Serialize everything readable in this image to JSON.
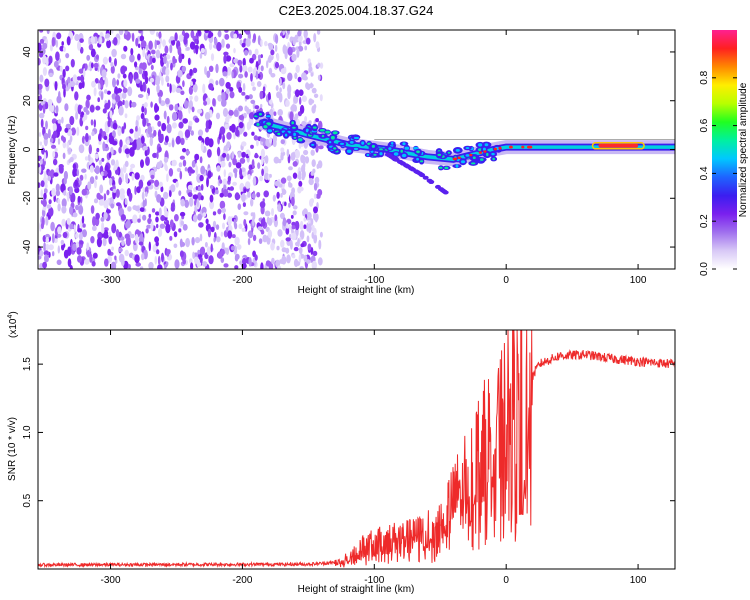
{
  "figure": {
    "title": "C2E3.2025.004.18.37.G24"
  },
  "chart_data": [
    {
      "type": "heatmap",
      "title": "C2E3.2025.004.18.37.G24",
      "xlabel": "Height of straight line (km)",
      "ylabel": "Frequency (Hz)",
      "xlim": [
        -355,
        128
      ],
      "ylim": [
        -49,
        49
      ],
      "x_ticks": [
        -300,
        -200,
        -100,
        0,
        100
      ],
      "y_ticks": [
        -40,
        -20,
        0,
        20,
        40
      ],
      "colorbar": {
        "label": "Normalized spectral amplitude",
        "range": [
          0,
          1
        ],
        "ticks": [
          "0.0",
          "0.2",
          "0.4",
          "0.6",
          "0.8"
        ],
        "colors": [
          "#ffffff",
          "#d8c8f6",
          "#a070ee",
          "#7a20ee",
          "#3b1ef0",
          "#1e64ff",
          "#00c8ff",
          "#00f0a0",
          "#20ff20",
          "#b8ff00",
          "#ffee00",
          "#ff8800",
          "#ff2020",
          "#ff2090"
        ]
      },
      "segments": {
        "noise_region": [
          -355,
          -140
        ],
        "signal_track": [
          {
            "x": -185,
            "y": 11
          },
          {
            "x": -150,
            "y": 6
          },
          {
            "x": -120,
            "y": 2
          },
          {
            "x": -90,
            "y": 0
          },
          {
            "x": -60,
            "y": -3
          },
          {
            "x": -40,
            "y": -4
          },
          {
            "x": -10,
            "y": 0
          },
          {
            "x": 0,
            "y": 1
          },
          {
            "x": 50,
            "y": 1
          },
          {
            "x": 128,
            "y": 1
          }
        ],
        "branch_track": [
          {
            "x": -90,
            "y": -2
          },
          {
            "x": -65,
            "y": -10
          },
          {
            "x": -45,
            "y": -18
          }
        ]
      }
    },
    {
      "type": "line",
      "xlabel": "Height of straight line (km)",
      "ylabel": "SNR (10 * v/v)",
      "y_multiplier": "(x10",
      "y_multiplier_exp": "4",
      "xlim": [
        -355,
        128
      ],
      "ylim": [
        0,
        17500
      ],
      "x_ticks": [
        -300,
        -200,
        -100,
        0,
        100
      ],
      "y_ticks": [
        5000,
        10000,
        15000
      ],
      "y_tick_labels": [
        "0.5",
        "1.0",
        "1.5"
      ],
      "line_color": "#ee2a2a",
      "envelope": [
        {
          "x": -355,
          "y": 300
        },
        {
          "x": -150,
          "y": 350
        },
        {
          "x": -125,
          "y": 500
        },
        {
          "x": -110,
          "y": 1600
        },
        {
          "x": -90,
          "y": 2200
        },
        {
          "x": -70,
          "y": 2400
        },
        {
          "x": -55,
          "y": 3000
        },
        {
          "x": -40,
          "y": 5000
        },
        {
          "x": -30,
          "y": 7000
        },
        {
          "x": -20,
          "y": 8500
        },
        {
          "x": -10,
          "y": 10000
        },
        {
          "x": 0,
          "y": 11500
        },
        {
          "x": 5,
          "y": 12500
        },
        {
          "x": 15,
          "y": 13200
        },
        {
          "x": 25,
          "y": 15000
        },
        {
          "x": 40,
          "y": 15600
        },
        {
          "x": 60,
          "y": 15700
        },
        {
          "x": 80,
          "y": 15400
        },
        {
          "x": 100,
          "y": 15200
        },
        {
          "x": 128,
          "y": 15000
        }
      ]
    }
  ]
}
